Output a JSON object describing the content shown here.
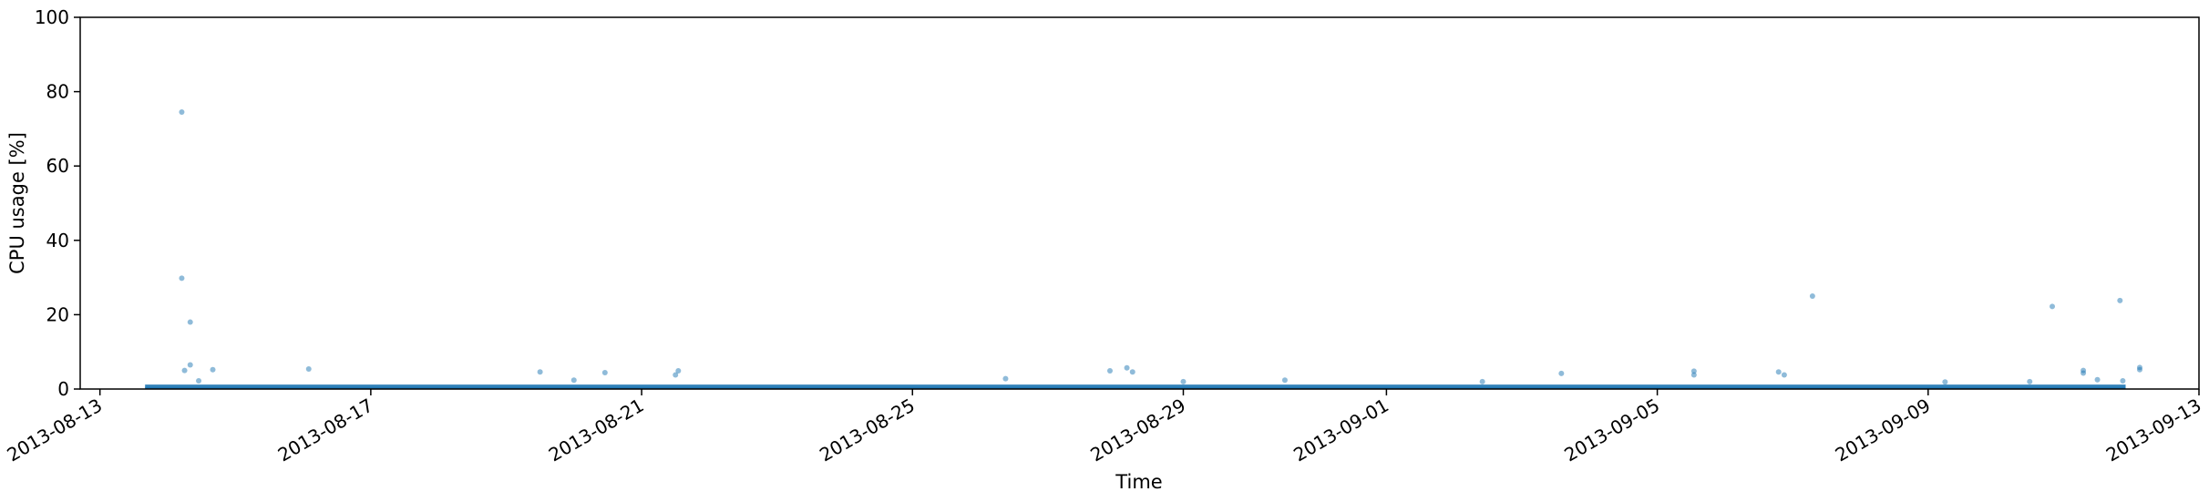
{
  "chart_data": {
    "type": "scatter",
    "title": "",
    "xlabel": "Time",
    "ylabel": "CPU usage [%]",
    "ylim": [
      0,
      100
    ],
    "xlim": [
      "2013-08-12T17:00",
      "2013-09-13T00:00"
    ],
    "grid": false,
    "legend": "none",
    "marker_color": "#1f77b4",
    "x_ticks": [
      "2013-08-13",
      "2013-08-17",
      "2013-08-21",
      "2013-08-25",
      "2013-08-29",
      "2013-09-01",
      "2013-09-05",
      "2013-09-09",
      "2013-09-13"
    ],
    "y_ticks": [
      0,
      20,
      40,
      60,
      80,
      100
    ],
    "baseline_band": {
      "x_start": "2013-08-13T16:00",
      "x_end": "2013-09-11T22:00",
      "y_low": 0.3,
      "y_high": 1.2
    },
    "points": [
      {
        "x": "2013-08-14T05:00",
        "y": 74.5
      },
      {
        "x": "2013-08-14T05:00",
        "y": 29.8
      },
      {
        "x": "2013-08-14T08:00",
        "y": 18.0
      },
      {
        "x": "2013-08-14T08:00",
        "y": 6.5
      },
      {
        "x": "2013-08-14T06:00",
        "y": 5.0
      },
      {
        "x": "2013-08-14T11:00",
        "y": 2.2
      },
      {
        "x": "2013-08-14T16:00",
        "y": 5.2
      },
      {
        "x": "2013-08-16T02:00",
        "y": 5.4
      },
      {
        "x": "2013-08-19T12:00",
        "y": 4.6
      },
      {
        "x": "2013-08-20T11:00",
        "y": 4.4
      },
      {
        "x": "2013-08-21T13:00",
        "y": 4.9
      },
      {
        "x": "2013-08-21T12:00",
        "y": 3.8
      },
      {
        "x": "2013-08-28T04:00",
        "y": 5.7
      },
      {
        "x": "2013-08-28T06:00",
        "y": 4.6
      },
      {
        "x": "2013-08-27T22:00",
        "y": 4.9
      },
      {
        "x": "2013-09-03T14:00",
        "y": 4.2
      },
      {
        "x": "2013-09-05T13:00",
        "y": 4.8
      },
      {
        "x": "2013-09-05T13:00",
        "y": 3.8
      },
      {
        "x": "2013-09-06T19:00",
        "y": 4.6
      },
      {
        "x": "2013-09-06T21:00",
        "y": 3.8
      },
      {
        "x": "2013-09-07T07:00",
        "y": 25.0
      },
      {
        "x": "2013-09-10T20:00",
        "y": 22.2
      },
      {
        "x": "2013-09-11T07:00",
        "y": 5.0
      },
      {
        "x": "2013-09-11T07:00",
        "y": 4.3
      },
      {
        "x": "2013-09-11T20:00",
        "y": 23.8
      },
      {
        "x": "2013-09-12T03:00",
        "y": 5.8
      },
      {
        "x": "2013-09-12T03:00",
        "y": 5.2
      },
      {
        "x": "2013-09-11T12:00",
        "y": 2.5
      },
      {
        "x": "2013-09-11T21:00",
        "y": 2.2
      },
      {
        "x": "2013-08-20T00:00",
        "y": 2.4
      },
      {
        "x": "2013-08-26T09:00",
        "y": 2.8
      },
      {
        "x": "2013-08-29T00:00",
        "y": 2.0
      },
      {
        "x": "2013-08-30T12:00",
        "y": 2.4
      },
      {
        "x": "2013-09-02T10:00",
        "y": 2.0
      },
      {
        "x": "2013-09-09T06:00",
        "y": 1.9
      },
      {
        "x": "2013-09-10T12:00",
        "y": 2.0
      }
    ]
  }
}
